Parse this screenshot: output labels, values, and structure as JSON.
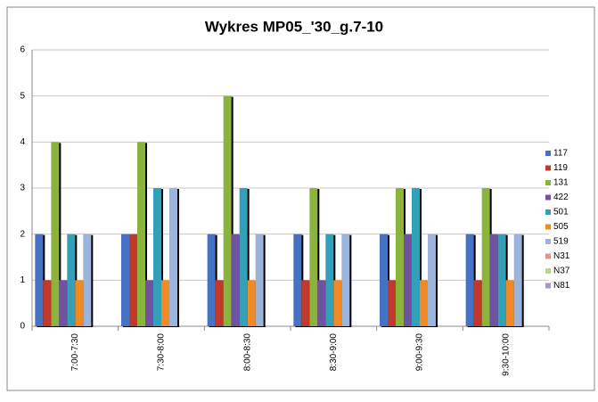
{
  "chart_data": {
    "type": "bar",
    "title": "Wykres MP05_'30_g.7-10",
    "categories": [
      "7:00-7:30",
      "7:30-8:00",
      "8:00-8:30",
      "8:30-9:00",
      "9:00-9:30",
      "9:30-10:00"
    ],
    "series": [
      {
        "name": "117",
        "color": "#4472c4",
        "values": [
          2,
          2,
          2,
          2,
          2,
          2
        ]
      },
      {
        "name": "119",
        "color": "#c0392b",
        "values": [
          1,
          2,
          1,
          1,
          1,
          1
        ]
      },
      {
        "name": "131",
        "color": "#8cb43c",
        "values": [
          4,
          4,
          5,
          3,
          3,
          3
        ]
      },
      {
        "name": "422",
        "color": "#7052a0",
        "values": [
          1,
          1,
          2,
          1,
          2,
          2
        ]
      },
      {
        "name": "501",
        "color": "#31a0b8",
        "values": [
          2,
          3,
          3,
          2,
          3,
          2
        ]
      },
      {
        "name": "505",
        "color": "#f08a24",
        "values": [
          1,
          1,
          1,
          1,
          1,
          1
        ]
      },
      {
        "name": "519",
        "color": "#9bb4dc",
        "values": [
          2,
          3,
          2,
          2,
          2,
          2
        ]
      },
      {
        "name": "N31",
        "color": "#e8908c",
        "values": [
          0,
          0,
          0,
          0,
          0,
          0
        ]
      },
      {
        "name": "N37",
        "color": "#b8d68c",
        "values": [
          0,
          0,
          0,
          0,
          0,
          0
        ]
      },
      {
        "name": "N81",
        "color": "#a896c8",
        "values": [
          0,
          0,
          0,
          0,
          0,
          0
        ]
      }
    ],
    "ylim": [
      0,
      6
    ],
    "yticks": [
      0,
      1,
      2,
      3,
      4,
      5,
      6
    ],
    "grid": true,
    "legend": "right"
  }
}
